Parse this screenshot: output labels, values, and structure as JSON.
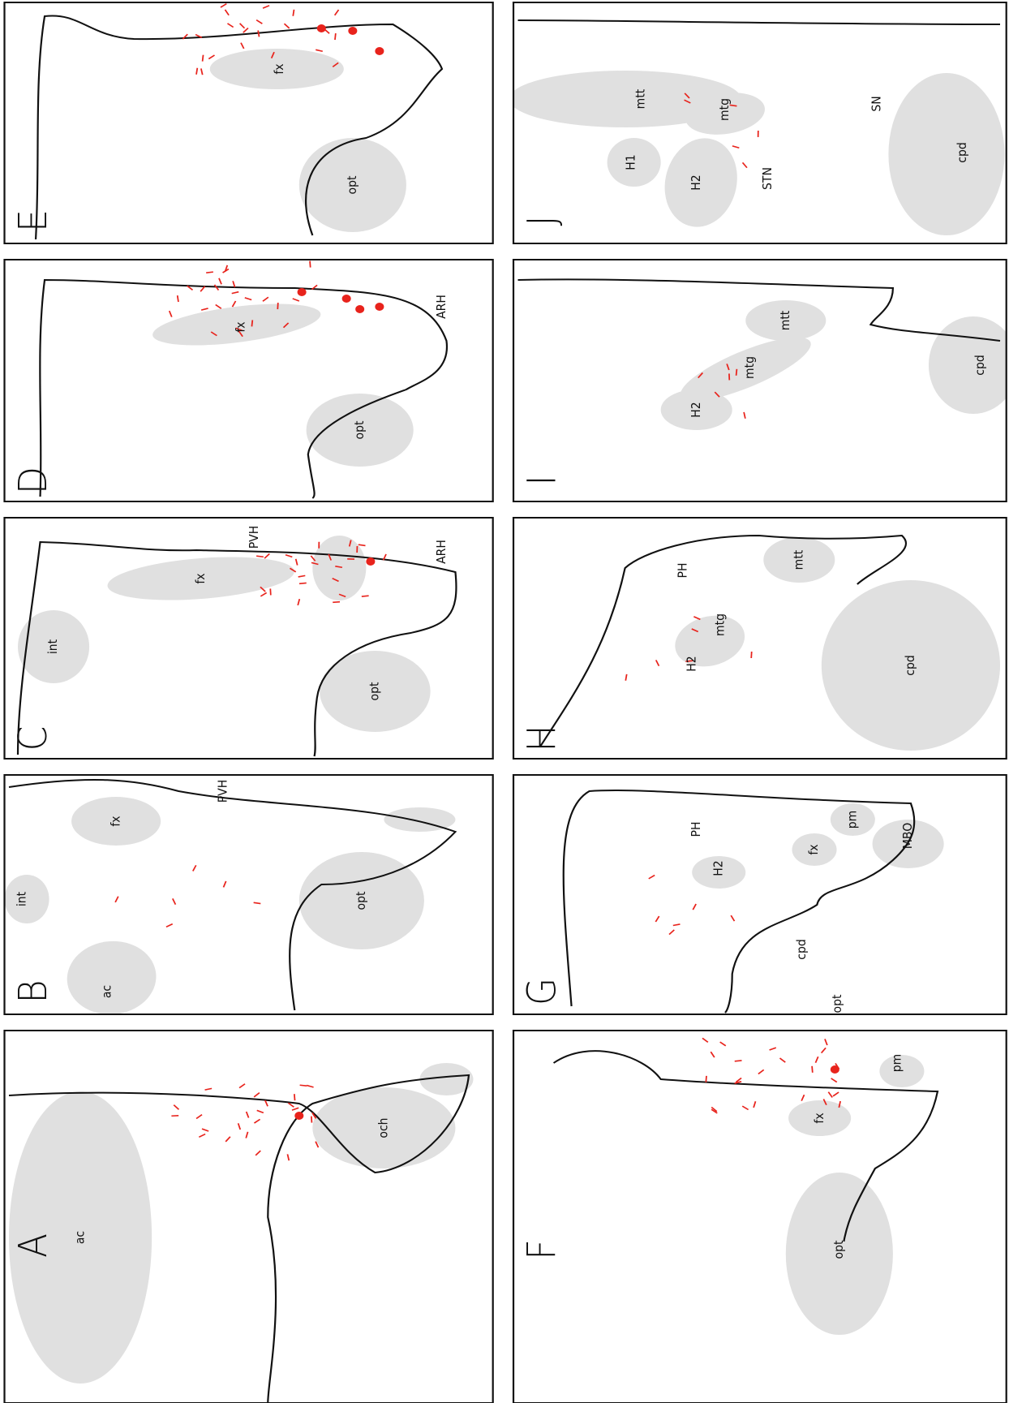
{
  "panels": [
    {
      "letter": "E",
      "labels": [
        "fx",
        "opt"
      ]
    },
    {
      "letter": "D",
      "labels": [
        "fx",
        "opt",
        "ARH"
      ]
    },
    {
      "letter": "C",
      "labels": [
        "int",
        "fx",
        "PVH",
        "ARH",
        "opt"
      ]
    },
    {
      "letter": "B",
      "labels": [
        "int",
        "ac",
        "fx",
        "PVH",
        "opt"
      ]
    },
    {
      "letter": "A",
      "labels": [
        "ac",
        "och"
      ]
    },
    {
      "letter": "J",
      "labels": [
        "mtt",
        "mtg",
        "H1",
        "H2",
        "STN",
        "SN",
        "cpd"
      ]
    },
    {
      "letter": "I",
      "labels": [
        "mtt",
        "mtg",
        "H2",
        "cpd"
      ]
    },
    {
      "letter": "H",
      "labels": [
        "PH",
        "mtt",
        "mtg",
        "H2",
        "cpd"
      ]
    },
    {
      "letter": "G",
      "labels": [
        "PH",
        "pm",
        "MBO",
        "H2",
        "fx",
        "cpd",
        "opt"
      ]
    },
    {
      "letter": "F",
      "labels": [
        "pm",
        "fx",
        "opt"
      ]
    }
  ]
}
